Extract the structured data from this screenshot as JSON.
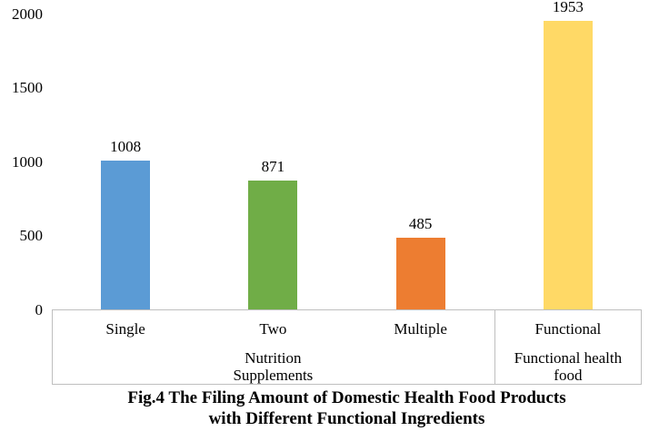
{
  "chart_data": {
    "type": "bar",
    "categories": [
      "Single",
      "Two",
      "Multiple",
      "Functional"
    ],
    "values": [
      1008,
      871,
      485,
      1953
    ],
    "value_labels": [
      "1008",
      "871",
      "485",
      "1953"
    ],
    "bar_colors": [
      "#5B9BD5",
      "#70AD47",
      "#ED7D31",
      "#FFD966"
    ],
    "yticks": [
      0,
      500,
      1000,
      1500,
      2000
    ],
    "ylim": [
      0,
      2000
    ],
    "grid": false,
    "legend": false,
    "group_labels": [
      {
        "label": "Nutrition Supplements",
        "start": 0,
        "end": 3
      },
      {
        "label": "Functional health food",
        "start": 3,
        "end": 4
      }
    ],
    "title": "Fig.4 The Filing Amount of Domestic Health Food Products with Different Functional Ingredients",
    "xlabel": "",
    "ylabel": "",
    "axis_line_color": "#BFBFBF",
    "text_color": "#000000"
  },
  "caption": {
    "line1": "Fig.4 The Filing Amount of Domestic Health Food Products",
    "line2": "with Different Functional Ingredients"
  }
}
